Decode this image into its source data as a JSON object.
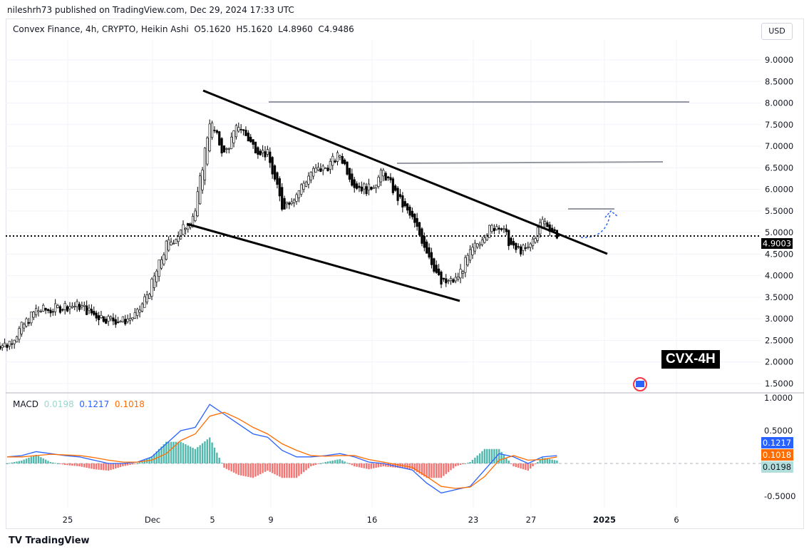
{
  "header": {
    "published": "nileshrh73 published on TradingView.com, Dec 29, 2024 17:33 UTC",
    "symbol": "Convex Finance, 4h, CRYPTO, Heikin Ashi",
    "open": "O5.1620",
    "high": "H5.1620",
    "low": "L4.8960",
    "close": "C4.9486",
    "currency": "USD"
  },
  "badge": "CVX-4H",
  "footer": "TradingView",
  "chart_data": [
    {
      "type": "candlestick",
      "title": "Convex Finance, 4h, CRYPTO, Heikin Ashi",
      "x_ticks": [
        "25",
        "Dec",
        "5",
        "9",
        "16",
        "23",
        "27",
        "2025",
        "6"
      ],
      "y_ticks": [
        "9.0000",
        "8.5000",
        "8.0000",
        "7.5000",
        "7.0000",
        "6.5000",
        "6.0000",
        "5.5000",
        "5.0000",
        "4.5000",
        "4.0000",
        "3.5000",
        "3.0000",
        "2.5000",
        "2.0000",
        "1.5000"
      ],
      "ylim": [
        1.5,
        9.0
      ],
      "last_price": "4.9003",
      "dates": [
        "Nov 21",
        "Nov 22",
        "Nov 23",
        "Nov 24",
        "Nov 25",
        "Nov 26",
        "Nov 27",
        "Nov 28",
        "Nov 29",
        "Nov 30",
        "Dec 1",
        "Dec 2",
        "Dec 3",
        "Dec 4",
        "Dec 5",
        "Dec 6",
        "Dec 7",
        "Dec 8",
        "Dec 9",
        "Dec 10",
        "Dec 11",
        "Dec 12",
        "Dec 13",
        "Dec 14",
        "Dec 15",
        "Dec 16",
        "Dec 17",
        "Dec 18",
        "Dec 19",
        "Dec 20",
        "Dec 21",
        "Dec 22",
        "Dec 23",
        "Dec 24",
        "Dec 25",
        "Dec 26",
        "Dec 27",
        "Dec 28",
        "Dec 29"
      ],
      "close": [
        2.4,
        2.8,
        3.2,
        3.2,
        3.3,
        3.3,
        3.1,
        3.0,
        2.95,
        3.1,
        3.8,
        4.7,
        5.0,
        5.5,
        7.6,
        6.8,
        7.5,
        7.0,
        6.8,
        5.6,
        5.9,
        6.4,
        6.5,
        6.8,
        6.1,
        6.0,
        6.4,
        5.8,
        5.3,
        4.6,
        3.8,
        3.9,
        4.5,
        5.0,
        5.2,
        4.6,
        4.6,
        5.3,
        4.95
      ],
      "resistance_levels": [
        8.0,
        6.6,
        5.5
      ]
    },
    {
      "type": "line+bar",
      "title": "MACD",
      "legend": {
        "label": "MACD",
        "hist": "0.0198",
        "macd": "0.1217",
        "signal": "0.1018"
      },
      "y_ticks": [
        "1.0000",
        "0.5000",
        "-0.5000"
      ],
      "ylim": [
        -0.7,
        1.0
      ],
      "colors": {
        "macd": "#2962ff",
        "signal": "#ff6d00",
        "hist_pos": "#26a69a",
        "hist_neg": "#ef5350"
      },
      "macd": [
        0.1,
        0.12,
        0.18,
        0.15,
        0.12,
        0.1,
        0.05,
        0.0,
        0.0,
        0.02,
        0.1,
        0.3,
        0.5,
        0.55,
        0.9,
        0.75,
        0.6,
        0.45,
        0.4,
        0.2,
        0.1,
        0.1,
        0.12,
        0.15,
        0.1,
        0.02,
        0.0,
        -0.05,
        -0.1,
        -0.3,
        -0.45,
        -0.4,
        -0.35,
        -0.1,
        0.15,
        0.1,
        0.0,
        0.1,
        0.12
      ],
      "signal": [
        0.1,
        0.1,
        0.12,
        0.14,
        0.13,
        0.12,
        0.09,
        0.05,
        0.02,
        0.02,
        0.05,
        0.15,
        0.35,
        0.45,
        0.72,
        0.78,
        0.68,
        0.55,
        0.45,
        0.3,
        0.2,
        0.12,
        0.11,
        0.12,
        0.12,
        0.06,
        0.02,
        -0.02,
        -0.06,
        -0.2,
        -0.35,
        -0.38,
        -0.36,
        -0.2,
        0.05,
        0.12,
        0.05,
        0.06,
        0.1
      ]
    }
  ]
}
